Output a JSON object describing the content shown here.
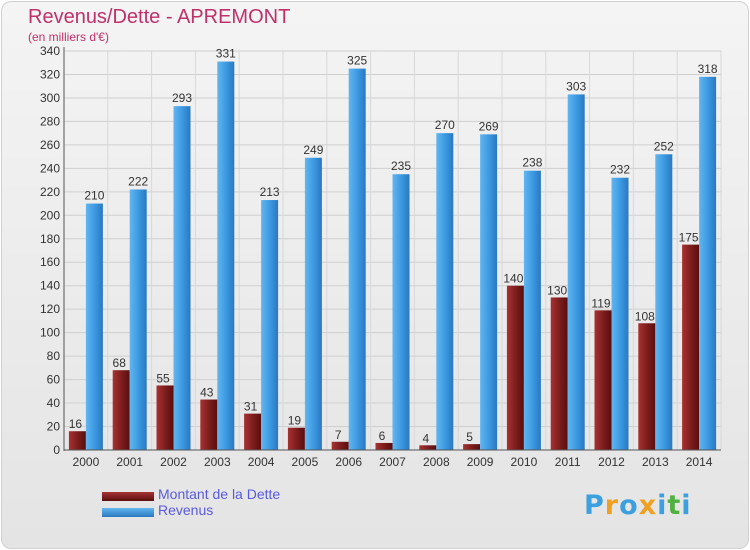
{
  "header": {
    "title": "Revenus/Dette - APREMONT",
    "subtitle": "(en milliers d'€)"
  },
  "chart_data": {
    "type": "bar",
    "categories": [
      "2000",
      "2001",
      "2002",
      "2003",
      "2004",
      "2005",
      "2006",
      "2007",
      "2008",
      "2009",
      "2010",
      "2011",
      "2012",
      "2013",
      "2014"
    ],
    "series": [
      {
        "name": "Montant de la Dette",
        "values": [
          16,
          68,
          55,
          43,
          31,
          19,
          7,
          6,
          4,
          5,
          140,
          130,
          119,
          108,
          175
        ],
        "color": "#7a1a1a"
      },
      {
        "name": "Revenus",
        "values": [
          210,
          222,
          293,
          331,
          213,
          249,
          325,
          235,
          270,
          269,
          238,
          303,
          232,
          252,
          318
        ],
        "color": "#3a97e0"
      }
    ],
    "yticks": [
      0,
      20,
      40,
      60,
      80,
      100,
      120,
      140,
      160,
      180,
      200,
      220,
      240,
      260,
      280,
      300,
      320,
      340
    ],
    "ylim": [
      0,
      340
    ],
    "grid": true,
    "legend": "bottom-left"
  },
  "logo": {
    "letters": [
      "P",
      "r",
      "o",
      "x",
      "i",
      "t",
      "i"
    ],
    "colors": [
      "#3aa0e0",
      "#f0a020",
      "#3aa0e0",
      "#f0a020",
      "#3aa0e0",
      "#50b040",
      "#3aa0e0"
    ]
  }
}
